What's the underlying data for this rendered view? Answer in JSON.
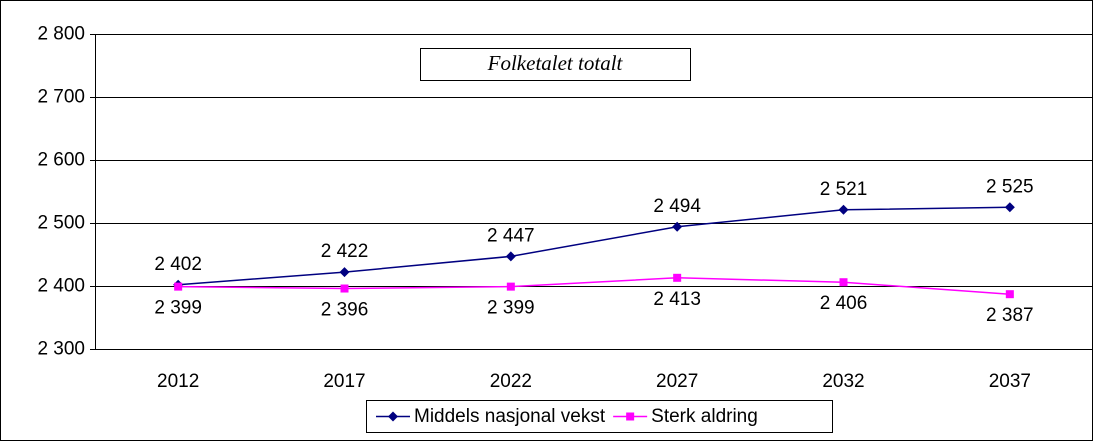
{
  "chart_data": {
    "type": "line",
    "title": "Folketalet totalt",
    "categories": [
      "2012",
      "2017",
      "2022",
      "2027",
      "2032",
      "2037"
    ],
    "series": [
      {
        "name": "Middels nasjonal vekst",
        "color": "#000080",
        "marker": "diamond",
        "values": [
          2402,
          2422,
          2447,
          2494,
          2521,
          2525
        ],
        "value_labels": [
          "2 402",
          "2 422",
          "2 447",
          "2 494",
          "2 521",
          "2 525"
        ]
      },
      {
        "name": "Sterk aldring",
        "color": "#ff00ff",
        "marker": "square",
        "values": [
          2399,
          2396,
          2399,
          2413,
          2406,
          2387
        ],
        "value_labels": [
          "2 399",
          "2 396",
          "2 399",
          "2 413",
          "2 406",
          "2 387"
        ]
      }
    ],
    "ylim": [
      2300,
      2800
    ],
    "yticks": [
      {
        "value": 2300,
        "label": "2 300"
      },
      {
        "value": 2400,
        "label": "2 400"
      },
      {
        "value": 2500,
        "label": "2 500"
      },
      {
        "value": 2600,
        "label": "2 600"
      },
      {
        "value": 2700,
        "label": "2 700"
      },
      {
        "value": 2800,
        "label": "2 800"
      }
    ],
    "grid": true,
    "legend": "bottom"
  }
}
